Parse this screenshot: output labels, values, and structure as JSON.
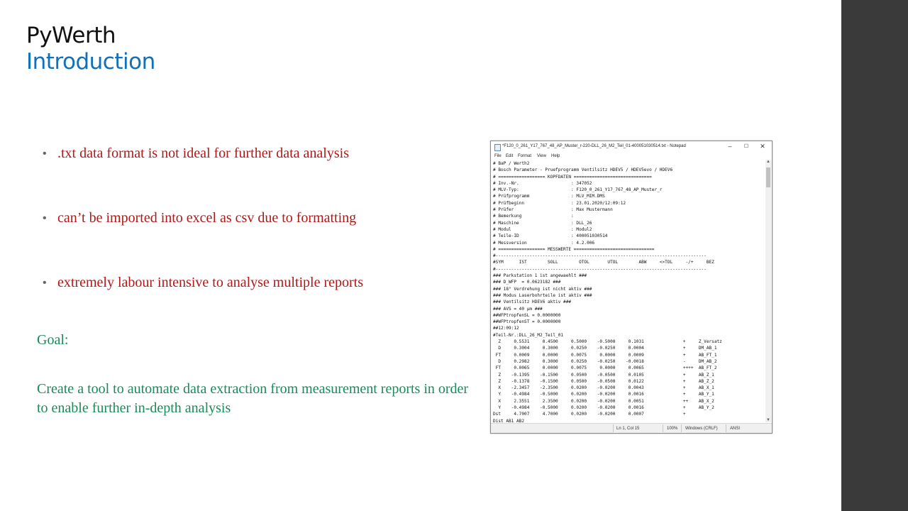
{
  "slide": {
    "title": "PyWerth",
    "subtitle": "Introduction",
    "bullets": [
      ".txt data format is not ideal for further data analysis",
      "can’t be imported into excel as csv due to formatting",
      "extremely labour intensive to analyse multiple reports"
    ],
    "bullet_symbol": "•",
    "goal_label": "Goal:",
    "goal_text": "Create a tool to automate data extraction from measurement reports in order to enable further in-depth analysis",
    "colors": {
      "bullet_text": "#b01818",
      "goal_text": "#1a8a5a",
      "subtitle": "#1170b8",
      "right_bar": "#3a3a3a"
    }
  },
  "notepad": {
    "title": "*F120_0_261_Y17_767_48_AP_Muster_r-220-DLL_26_M2_Teil_01-400051030514.txt - Notepad",
    "controls": {
      "minimize": "–",
      "maximize": "☐",
      "close": "✕"
    },
    "menu": [
      "File",
      "Edit",
      "Format",
      "View",
      "Help"
    ],
    "lines": [
      "# BaP / Werth2",
      "# Bosch Parameter - Pruefprogramm Ventilsitz HDEV5 / HDEV5evo / HDEV6",
      "# ================== KOPFDATEN ==============================",
      "# Inv.-Nr.                    : 347052",
      "# MLV-Typ:                    : F120_0_261_Y17_767_48_AP_Muster_r",
      "# Prüfprogramm                : MLV_MIM.DMS",
      "# Prüfbeginn                  : 23.01.2020/12:09:12",
      "# Prüfer                      : Max Mustermann",
      "# Bemerkung                   :",
      "# Maschine                    : DLL_26",
      "# Modul                       : Modul2",
      "# Teile-ID                    : 400051030514",
      "# Messversion                 : 4.2.006",
      "# ================== MESSWERTE ===============================",
      "#---------------------------------------------------------------------------------",
      "#SYM      IST        SOLL        OTOL       UTOL        ABW     <>TOL     -/+     BEZ",
      "#---------------------------------------------------------------------------------",
      "### Parkstation 1 ist angewaehlt ###",
      "### D_WFP  = 0.0623182 ###",
      "### 18° Verdrehung ist nicht aktiv ###",
      "### Modus Laserbohrteile ist aktiv ###",
      "### Ventilsitz HDEV6 aktiv ###",
      "### AVS = 40 µm ###",
      "##WFPtropfenSL = 0.0000000",
      "##WFPtropfenST = 0.0000000",
      "##12:09:12",
      "#Teil-Nr.:DLL_26_M2_Teil_01",
      "  Z     0.5531     0.4500     0.5000    -0.5000     0.1031               +     Z_Versatz",
      "  D     0.3004     0.3000     0.0250    -0.0250     0.0004               +     DM_AB_1",
      " FT     0.0009     0.0000     0.0075     0.0000     0.0009               +     AB_FT_1",
      "  D     0.2982     0.3000     0.0250    -0.0250    -0.0018               -     DM_AB_2",
      " FT     0.0065     0.0000     0.0075     0.0000     0.0065               ++++  AB_FT_2",
      "  Z    -0.1395    -0.1500     0.0500    -0.0500     0.0105               +     AB_Z_1",
      "  Z    -0.1378    -0.1500     0.0500    -0.0500     0.0122               +     AB_Z_2",
      "  X    -2.3457    -2.3500     0.0200    -0.0200     0.0043               +     AB_X_1",
      "  Y    -0.4984    -0.5000     0.0200    -0.0200     0.0016               +     AB_Y_1",
      "  X     2.3551     2.3500     0.0200    -0.0200     0.0051               ++    AB_X_2",
      "  Y    -0.4984    -0.5000     0.0200    -0.0200     0.0016               +     AB_Y_2",
      "Dst     4.7007     4.7000     0.0200    -0.0200     0.0007               +",
      "Dist_AB1_AB2"
    ],
    "status": {
      "position": "Ln 1, Col 15",
      "zoom": "100%",
      "line_ending": "Windows (CRLF)",
      "encoding": "ANSI"
    }
  }
}
